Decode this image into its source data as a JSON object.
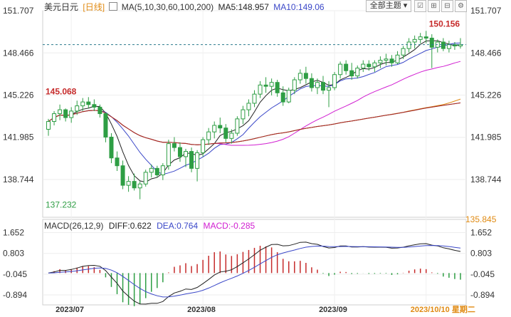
{
  "header": {
    "symbol": "美元日元",
    "period": "[日线]",
    "ma_params": "MA(5,10,30,60,100,200)",
    "ma5": "MA5:148.957",
    "ma10": "MA10:149.06",
    "theme_button": "全部主题"
  },
  "colors": {
    "up": "#2e9e44",
    "down": "#2e9e44",
    "ma5": "#222222",
    "ma10": "#3a47c8",
    "ma30": "#d11ed1",
    "ma60": "#e08a12",
    "ma100": "#888888",
    "ma200": "#a8231e",
    "diff": "#222222",
    "dea": "#3a47c8",
    "macd_label": "#d11ed1",
    "high_label": "#c62b2b",
    "current": "#2a7a8c"
  },
  "chart_data": [
    {
      "type": "candlestick",
      "title": "美元日元 [日线]",
      "y_ticks": [
        151.707,
        148.466,
        145.226,
        141.985,
        138.744
      ],
      "y_bottom_label": "135.845",
      "ylim": [
        135.845,
        151.707
      ],
      "x_ticks": [
        "2023/07",
        "2023/08",
        "2023/09",
        "2023/10/10 星期二"
      ],
      "annotations": {
        "high_1": "145.068",
        "low": "137.232",
        "high_2": "150.156"
      },
      "current_price": 149.1,
      "candles": [
        {
          "o": 142.6,
          "h": 143.4,
          "l": 142.1,
          "c": 143.2
        },
        {
          "o": 143.2,
          "h": 144.0,
          "l": 142.9,
          "c": 143.8
        },
        {
          "o": 143.8,
          "h": 144.5,
          "l": 143.3,
          "c": 144.1
        },
        {
          "o": 144.1,
          "h": 144.2,
          "l": 143.2,
          "c": 143.5
        },
        {
          "o": 143.5,
          "h": 144.3,
          "l": 143.1,
          "c": 144.0
        },
        {
          "o": 144.0,
          "h": 144.8,
          "l": 143.7,
          "c": 144.4
        },
        {
          "o": 144.4,
          "h": 145.0,
          "l": 144.0,
          "c": 144.7
        },
        {
          "o": 144.7,
          "h": 145.07,
          "l": 144.2,
          "c": 144.5
        },
        {
          "o": 144.5,
          "h": 144.9,
          "l": 144.0,
          "c": 144.3
        },
        {
          "o": 144.3,
          "h": 144.5,
          "l": 143.5,
          "c": 143.8
        },
        {
          "o": 143.8,
          "h": 143.9,
          "l": 141.6,
          "c": 142.0
        },
        {
          "o": 142.0,
          "h": 142.3,
          "l": 140.0,
          "c": 140.4
        },
        {
          "o": 140.4,
          "h": 140.9,
          "l": 139.4,
          "c": 139.8
        },
        {
          "o": 139.8,
          "h": 140.2,
          "l": 138.0,
          "c": 138.3
        },
        {
          "o": 138.3,
          "h": 139.0,
          "l": 137.8,
          "c": 138.6
        },
        {
          "o": 138.6,
          "h": 139.2,
          "l": 137.9,
          "c": 138.1
        },
        {
          "o": 138.1,
          "h": 138.6,
          "l": 137.23,
          "c": 138.4
        },
        {
          "o": 138.4,
          "h": 139.5,
          "l": 138.2,
          "c": 139.3
        },
        {
          "o": 139.3,
          "h": 139.9,
          "l": 138.9,
          "c": 139.6
        },
        {
          "o": 139.6,
          "h": 139.8,
          "l": 138.9,
          "c": 139.1
        },
        {
          "o": 139.1,
          "h": 140.0,
          "l": 138.7,
          "c": 139.8
        },
        {
          "o": 139.8,
          "h": 141.8,
          "l": 139.5,
          "c": 141.5
        },
        {
          "o": 141.5,
          "h": 142.0,
          "l": 140.9,
          "c": 141.2
        },
        {
          "o": 141.2,
          "h": 141.6,
          "l": 140.1,
          "c": 140.5
        },
        {
          "o": 140.5,
          "h": 141.1,
          "l": 139.7,
          "c": 140.9
        },
        {
          "o": 140.9,
          "h": 141.2,
          "l": 139.3,
          "c": 139.6
        },
        {
          "o": 139.6,
          "h": 141.0,
          "l": 138.6,
          "c": 140.8
        },
        {
          "o": 140.8,
          "h": 142.0,
          "l": 140.5,
          "c": 141.8
        },
        {
          "o": 141.8,
          "h": 142.7,
          "l": 141.4,
          "c": 142.4
        },
        {
          "o": 142.4,
          "h": 143.2,
          "l": 141.9,
          "c": 142.9
        },
        {
          "o": 142.9,
          "h": 143.5,
          "l": 142.3,
          "c": 142.7
        },
        {
          "o": 142.7,
          "h": 143.0,
          "l": 141.6,
          "c": 141.9
        },
        {
          "o": 141.9,
          "h": 142.6,
          "l": 141.5,
          "c": 142.3
        },
        {
          "o": 142.3,
          "h": 143.6,
          "l": 142.1,
          "c": 143.4
        },
        {
          "o": 143.4,
          "h": 144.4,
          "l": 143.0,
          "c": 144.1
        },
        {
          "o": 144.1,
          "h": 144.9,
          "l": 143.6,
          "c": 144.6
        },
        {
          "o": 144.6,
          "h": 145.6,
          "l": 144.3,
          "c": 145.3
        },
        {
          "o": 145.3,
          "h": 146.3,
          "l": 145.0,
          "c": 146.0
        },
        {
          "o": 146.0,
          "h": 146.6,
          "l": 145.4,
          "c": 145.9
        },
        {
          "o": 145.9,
          "h": 146.5,
          "l": 145.2,
          "c": 146.2
        },
        {
          "o": 146.2,
          "h": 146.4,
          "l": 145.1,
          "c": 145.4
        },
        {
          "o": 145.4,
          "h": 145.9,
          "l": 144.4,
          "c": 144.7
        },
        {
          "o": 144.7,
          "h": 145.8,
          "l": 144.6,
          "c": 145.6
        },
        {
          "o": 145.6,
          "h": 146.6,
          "l": 145.3,
          "c": 146.4
        },
        {
          "o": 146.4,
          "h": 147.2,
          "l": 146.1,
          "c": 146.9
        },
        {
          "o": 146.9,
          "h": 147.4,
          "l": 146.1,
          "c": 146.5
        },
        {
          "o": 146.5,
          "h": 146.9,
          "l": 145.5,
          "c": 145.8
        },
        {
          "o": 145.8,
          "h": 146.5,
          "l": 145.3,
          "c": 146.2
        },
        {
          "o": 146.2,
          "h": 146.7,
          "l": 145.3,
          "c": 145.6
        },
        {
          "o": 145.6,
          "h": 146.3,
          "l": 144.3,
          "c": 145.8
        },
        {
          "o": 145.8,
          "h": 147.0,
          "l": 145.6,
          "c": 146.8
        },
        {
          "o": 146.8,
          "h": 147.8,
          "l": 146.5,
          "c": 147.6
        },
        {
          "o": 147.6,
          "h": 147.9,
          "l": 146.8,
          "c": 147.1
        },
        {
          "o": 147.1,
          "h": 147.7,
          "l": 146.4,
          "c": 146.7
        },
        {
          "o": 146.7,
          "h": 147.5,
          "l": 146.5,
          "c": 147.3
        },
        {
          "o": 147.3,
          "h": 147.9,
          "l": 147.0,
          "c": 147.6
        },
        {
          "o": 147.6,
          "h": 147.9,
          "l": 147.1,
          "c": 147.4
        },
        {
          "o": 147.4,
          "h": 147.9,
          "l": 147.0,
          "c": 147.7
        },
        {
          "o": 147.7,
          "h": 148.2,
          "l": 147.3,
          "c": 147.9
        },
        {
          "o": 147.9,
          "h": 148.4,
          "l": 147.5,
          "c": 148.0
        },
        {
          "o": 148.0,
          "h": 148.3,
          "l": 147.4,
          "c": 147.7
        },
        {
          "o": 147.7,
          "h": 148.6,
          "l": 147.6,
          "c": 148.3
        },
        {
          "o": 148.3,
          "h": 149.0,
          "l": 148.0,
          "c": 148.8
        },
        {
          "o": 148.8,
          "h": 149.6,
          "l": 148.5,
          "c": 149.3
        },
        {
          "o": 149.3,
          "h": 149.8,
          "l": 148.8,
          "c": 149.5
        },
        {
          "o": 149.5,
          "h": 150.0,
          "l": 149.2,
          "c": 149.7
        },
        {
          "o": 149.7,
          "h": 150.156,
          "l": 149.2,
          "c": 149.6
        },
        {
          "o": 149.6,
          "h": 149.9,
          "l": 147.3,
          "c": 148.9
        },
        {
          "o": 148.9,
          "h": 149.5,
          "l": 148.5,
          "c": 149.3
        },
        {
          "o": 149.3,
          "h": 149.6,
          "l": 148.6,
          "c": 148.8
        },
        {
          "o": 148.8,
          "h": 149.4,
          "l": 148.5,
          "c": 149.1
        },
        {
          "o": 149.1,
          "h": 149.3,
          "l": 148.7,
          "c": 149.0
        },
        {
          "o": 149.0,
          "h": 149.6,
          "l": 148.8,
          "c": 149.1
        }
      ]
    },
    {
      "type": "macd",
      "legend": {
        "params": "MACD(26,12,9)",
        "diff": "DIFF:0.622",
        "dea": "DEA:0.764",
        "macd": "MACD:-0.285"
      },
      "y_ticks": [
        1.652,
        0.803,
        -0.045,
        -0.894
      ],
      "ylim": [
        -1.3,
        1.9
      ]
    }
  ]
}
